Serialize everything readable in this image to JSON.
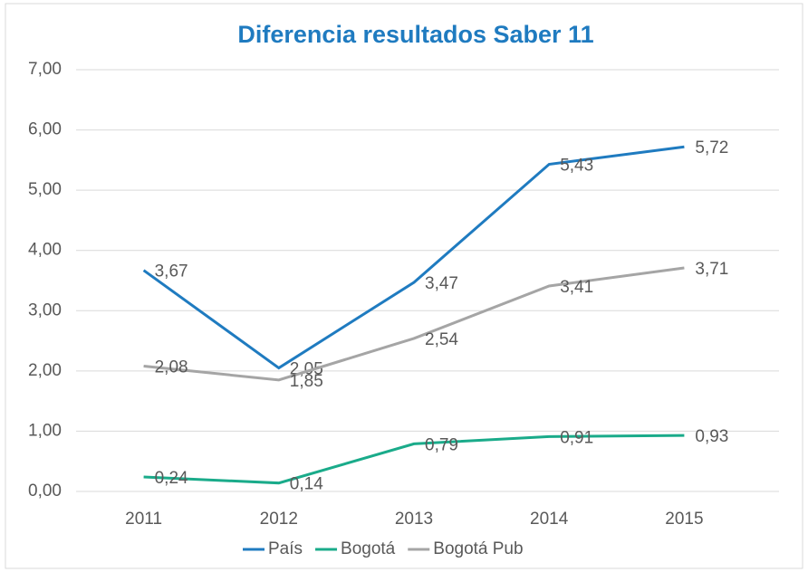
{
  "chart_data": {
    "type": "line",
    "title": "Diferencia resultados Saber 11",
    "categories": [
      "2011",
      "2012",
      "2013",
      "2014",
      "2015"
    ],
    "series": [
      {
        "name": "País",
        "color": "#1f7bc0",
        "values": [
          3.67,
          2.05,
          3.47,
          5.43,
          5.72
        ],
        "value_labels": [
          "3,67",
          "2,05",
          "3,47",
          "5,43",
          "5,72"
        ]
      },
      {
        "name": "Bogotá",
        "color": "#1aab8a",
        "values": [
          0.24,
          0.14,
          0.79,
          0.91,
          0.93
        ],
        "value_labels": [
          "0,24",
          "0,14",
          "0,79",
          "0,91",
          "0,93"
        ]
      },
      {
        "name": "Bogotá Pub",
        "color": "#a5a5a5",
        "values": [
          2.08,
          1.85,
          2.54,
          3.41,
          3.71
        ],
        "value_labels": [
          "2,08",
          "1,85",
          "2,54",
          "3,41",
          "3,71"
        ]
      }
    ],
    "ylim": [
      0,
      7
    ],
    "yticks": [
      {
        "value": 0,
        "label": "0,00"
      },
      {
        "value": 1,
        "label": "1,00"
      },
      {
        "value": 2,
        "label": "2,00"
      },
      {
        "value": 3,
        "label": "3,00"
      },
      {
        "value": 4,
        "label": "4,00"
      },
      {
        "value": 5,
        "label": "5,00"
      },
      {
        "value": 6,
        "label": "6,00"
      },
      {
        "value": 7,
        "label": "7,00"
      }
    ],
    "grid": true,
    "legend": "bottom"
  }
}
